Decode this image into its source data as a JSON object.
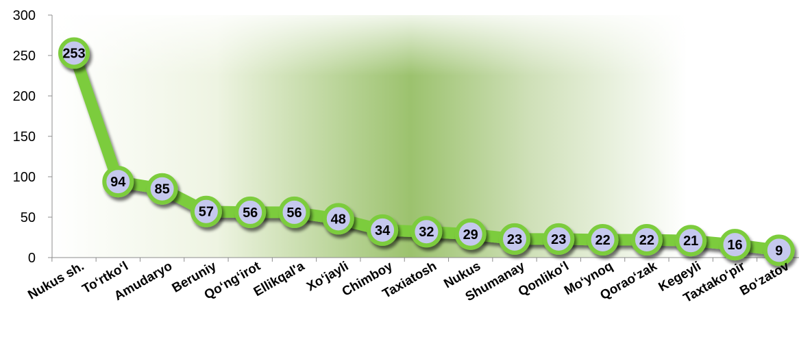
{
  "chart_data": {
    "type": "line",
    "title": "",
    "xlabel": "",
    "ylabel": "",
    "ylim": [
      0,
      300
    ],
    "yticks": [
      "0",
      "50",
      "100",
      "150",
      "200",
      "250",
      "300"
    ],
    "grid": false,
    "legend": "none",
    "categories": [
      "Nukus sh.",
      "To‘rtko‘l",
      "Amudaryo",
      "Beruniy",
      "Qo‘ng‘irot",
      "Ellikqal'a",
      "Xo‘jayli",
      "Chimboy",
      "Taxiatosh",
      "Nukus",
      "Shumanay",
      "Qonliko‘l",
      "Mo‘ynoq",
      "Qorao‘zak",
      "Kegeyli",
      "Taxtako‘pir",
      "Bo‘zatov"
    ],
    "series": [
      {
        "values": [
          253,
          94,
          85,
          57,
          56,
          56,
          48,
          34,
          32,
          29,
          23,
          23,
          22,
          22,
          21,
          16,
          9
        ],
        "labels": [
          "253",
          "94",
          "85",
          "57",
          "56",
          "56",
          "48",
          "34",
          "32",
          "29",
          "23",
          "23",
          "22",
          "22",
          "21",
          "16",
          "9"
        ]
      }
    ],
    "colors": {
      "line": "#7ccc3c",
      "marker_fill": "#c5c8ee",
      "marker_border": "#7ccc3c",
      "shadow": "#3f3f3f",
      "background_band": "#86b45a"
    }
  }
}
